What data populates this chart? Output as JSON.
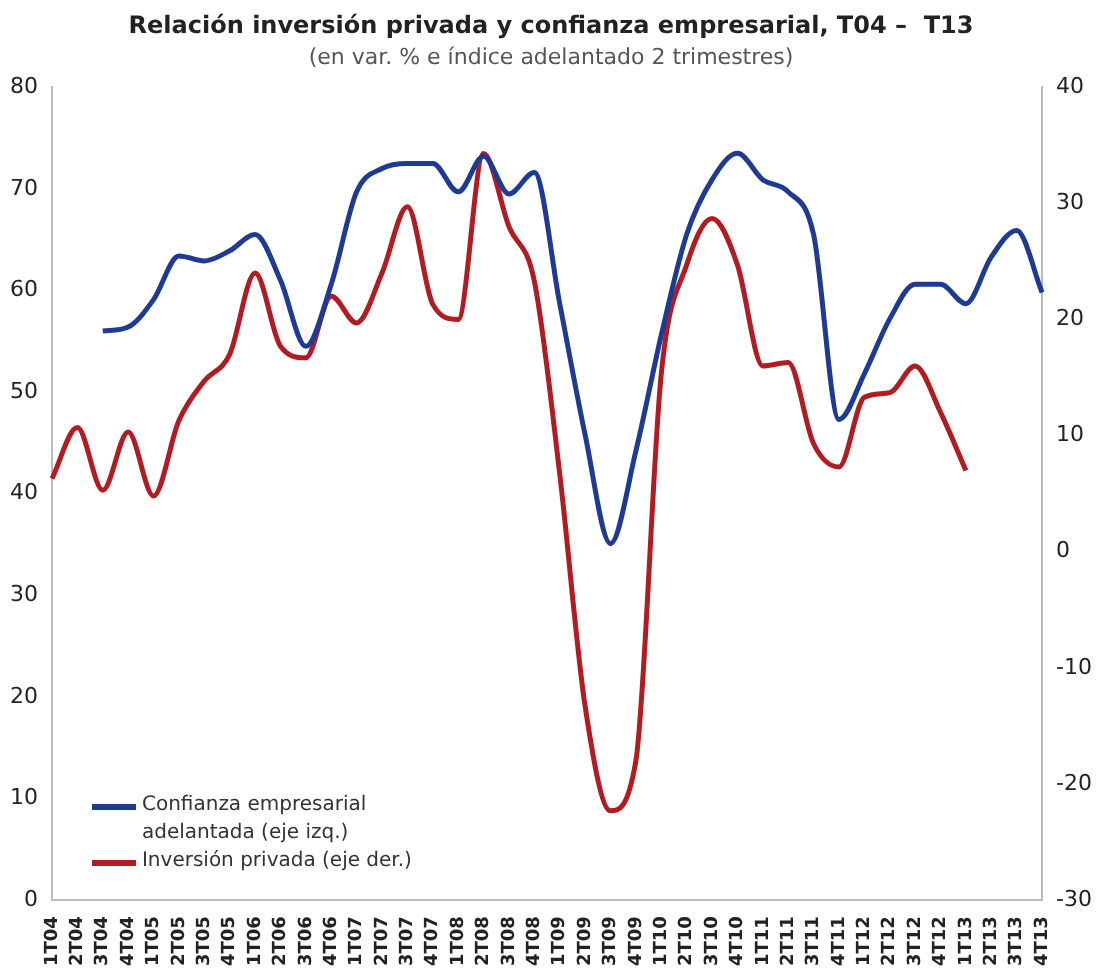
{
  "chart_data": {
    "type": "line",
    "title": "Relación inversión privada y confianza empresarial, T04 –  T13",
    "subtitle": "(en var. % e índice adelantado 2 trimestres)",
    "categories": [
      "1T04",
      "2T04",
      "3T04",
      "4T04",
      "1T05",
      "2T05",
      "3T05",
      "4T05",
      "1T06",
      "2T06",
      "3T06",
      "4T06",
      "1T07",
      "2T07",
      "3T07",
      "4T07",
      "1T08",
      "2T08",
      "3T08",
      "4T08",
      "1T09",
      "2T09",
      "3T09",
      "4T09",
      "1T10",
      "2T10",
      "3T10",
      "4T10",
      "1T11",
      "2T11",
      "3T11",
      "4T11",
      "1T12",
      "2T12",
      "3T12",
      "4T12",
      "1T13",
      "2T13",
      "3T13",
      "4T13"
    ],
    "series": [
      {
        "name": "Confianza empresarial adelantada (eje izq.)",
        "color": "#1f3a93",
        "values": [
          null,
          null,
          56.0,
          56.4,
          59.1,
          63.4,
          62.9,
          63.9,
          65.5,
          61.0,
          54.5,
          60.6,
          69.7,
          72.0,
          72.5,
          72.5,
          69.7,
          73.2,
          69.5,
          71.6,
          58.7,
          45.8,
          35.1,
          44.2,
          55.6,
          65.5,
          70.9,
          73.5,
          70.9,
          69.7,
          65.5,
          47.3,
          51.8,
          57.2,
          60.6,
          60.6,
          58.7,
          63.3,
          65.9,
          59.8
        ]
      },
      {
        "name": "Inversión privada (eje der.)",
        "color": "#b01c22",
        "axis": "y2",
        "values": [
          6.3,
          10.7,
          5.3,
          10.3,
          4.8,
          11.3,
          14.7,
          17,
          24,
          17.7,
          16.7,
          22,
          19.7,
          24,
          29.7,
          21.3,
          20,
          34.3,
          28,
          23.3,
          6.7,
          -13.3,
          -22.3,
          -18,
          15.3,
          24.7,
          28.7,
          24.7,
          16,
          16.3,
          9.3,
          7.3,
          13.3,
          13.7,
          16,
          12,
          7,
          null,
          null,
          null
        ]
      }
    ],
    "ylim": [
      0,
      80
    ],
    "yticks": [
      0,
      10,
      20,
      30,
      40,
      50,
      60,
      70,
      80
    ],
    "y2lim": [
      -30,
      40
    ],
    "y2ticks": [
      -30,
      -20,
      -10,
      0,
      10,
      20,
      30,
      40
    ],
    "grid": false,
    "legend": "bottom left",
    "marker": "none",
    "line_style": "solid"
  }
}
